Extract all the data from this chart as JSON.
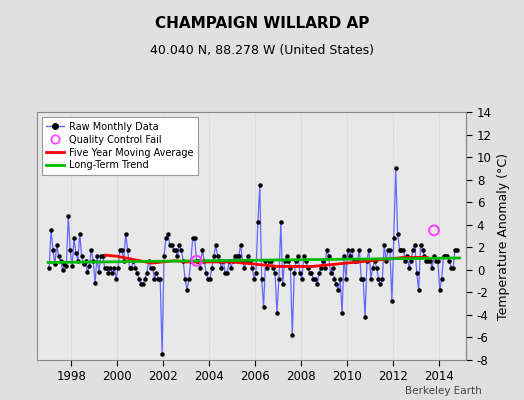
{
  "title": "CHAMPAIGN WILLARD AP",
  "subtitle": "40.040 N, 88.278 W (United States)",
  "ylabel": "Temperature Anomaly (°C)",
  "credit": "Berkeley Earth",
  "ylim": [
    -8,
    14
  ],
  "yticks": [
    -8,
    -6,
    -4,
    -2,
    0,
    2,
    4,
    6,
    8,
    10,
    12,
    14
  ],
  "xlim": [
    1996.5,
    2015.2
  ],
  "xticks": [
    1998,
    2000,
    2002,
    2004,
    2006,
    2008,
    2010,
    2012,
    2014
  ],
  "bg_color": "#e0e0e0",
  "plot_bg_color": "#e8e8e8",
  "grid_color": "#c8c8d8",
  "raw_line_color": "#6666ff",
  "raw_marker_color": "#000000",
  "moving_avg_color": "#ff0000",
  "trend_color": "#00bb00",
  "qc_fail_color": "#ff44ff",
  "raw_data": {
    "times": [
      1997.042,
      1997.125,
      1997.208,
      1997.292,
      1997.375,
      1997.458,
      1997.542,
      1997.625,
      1997.708,
      1997.792,
      1997.875,
      1997.958,
      1998.042,
      1998.125,
      1998.208,
      1998.292,
      1998.375,
      1998.458,
      1998.542,
      1998.625,
      1998.708,
      1998.792,
      1998.875,
      1998.958,
      1999.042,
      1999.125,
      1999.208,
      1999.292,
      1999.375,
      1999.458,
      1999.542,
      1999.625,
      1999.708,
      1999.792,
      1999.875,
      1999.958,
      2000.042,
      2000.125,
      2000.208,
      2000.292,
      2000.375,
      2000.458,
      2000.542,
      2000.625,
      2000.708,
      2000.792,
      2000.875,
      2000.958,
      2001.042,
      2001.125,
      2001.208,
      2001.292,
      2001.375,
      2001.458,
      2001.542,
      2001.625,
      2001.708,
      2001.792,
      2001.875,
      2001.958,
      2002.042,
      2002.125,
      2002.208,
      2002.292,
      2002.375,
      2002.458,
      2002.542,
      2002.625,
      2002.708,
      2002.792,
      2002.875,
      2002.958,
      2003.042,
      2003.125,
      2003.208,
      2003.292,
      2003.375,
      2003.458,
      2003.542,
      2003.625,
      2003.708,
      2003.792,
      2003.875,
      2003.958,
      2004.042,
      2004.125,
      2004.208,
      2004.292,
      2004.375,
      2004.458,
      2004.542,
      2004.625,
      2004.708,
      2004.792,
      2004.875,
      2004.958,
      2005.042,
      2005.125,
      2005.208,
      2005.292,
      2005.375,
      2005.458,
      2005.542,
      2005.625,
      2005.708,
      2005.792,
      2005.875,
      2005.958,
      2006.042,
      2006.125,
      2006.208,
      2006.292,
      2006.375,
      2006.458,
      2006.542,
      2006.625,
      2006.708,
      2006.792,
      2006.875,
      2006.958,
      2007.042,
      2007.125,
      2007.208,
      2007.292,
      2007.375,
      2007.458,
      2007.542,
      2007.625,
      2007.708,
      2007.792,
      2007.875,
      2007.958,
      2008.042,
      2008.125,
      2008.208,
      2008.292,
      2008.375,
      2008.458,
      2008.542,
      2008.625,
      2008.708,
      2008.792,
      2008.875,
      2008.958,
      2009.042,
      2009.125,
      2009.208,
      2009.292,
      2009.375,
      2009.458,
      2009.542,
      2009.625,
      2009.708,
      2009.792,
      2009.875,
      2009.958,
      2010.042,
      2010.125,
      2010.208,
      2010.292,
      2010.375,
      2010.458,
      2010.542,
      2010.625,
      2010.708,
      2010.792,
      2010.875,
      2010.958,
      2011.042,
      2011.125,
      2011.208,
      2011.292,
      2011.375,
      2011.458,
      2011.542,
      2011.625,
      2011.708,
      2011.792,
      2011.875,
      2011.958,
      2012.042,
      2012.125,
      2012.208,
      2012.292,
      2012.375,
      2012.458,
      2012.542,
      2012.625,
      2012.708,
      2012.792,
      2012.875,
      2012.958,
      2013.042,
      2013.125,
      2013.208,
      2013.292,
      2013.375,
      2013.458,
      2013.542,
      2013.625,
      2013.708,
      2013.792,
      2013.875,
      2013.958,
      2014.042,
      2014.125,
      2014.208,
      2014.292,
      2014.375,
      2014.458,
      2014.542,
      2014.625,
      2014.708,
      2014.792
    ],
    "values": [
      0.2,
      3.5,
      1.8,
      0.5,
      2.2,
      1.2,
      0.8,
      0.0,
      0.5,
      0.3,
      4.8,
      1.8,
      0.3,
      2.8,
      1.5,
      0.8,
      3.2,
      1.2,
      0.5,
      0.8,
      -0.2,
      0.3,
      1.8,
      0.8,
      -1.2,
      1.2,
      -0.2,
      1.2,
      1.2,
      0.2,
      0.2,
      -0.3,
      0.2,
      -0.3,
      0.2,
      -0.8,
      0.2,
      1.8,
      1.8,
      0.8,
      3.2,
      1.8,
      0.2,
      0.2,
      0.8,
      0.2,
      -0.3,
      -0.8,
      -1.3,
      -1.3,
      -0.8,
      -0.3,
      0.8,
      0.2,
      0.2,
      -0.8,
      -0.3,
      -0.8,
      -0.8,
      -7.5,
      1.2,
      2.8,
      3.2,
      2.2,
      2.2,
      1.8,
      1.8,
      1.2,
      2.2,
      1.8,
      0.8,
      -0.8,
      -1.8,
      -0.8,
      0.8,
      2.8,
      2.8,
      0.8,
      0.8,
      0.2,
      1.8,
      0.8,
      -0.3,
      -0.8,
      -0.8,
      0.2,
      1.2,
      2.2,
      1.2,
      0.8,
      0.2,
      0.8,
      -0.3,
      -0.3,
      0.8,
      0.2,
      0.8,
      1.2,
      1.2,
      1.2,
      2.2,
      0.8,
      0.2,
      0.8,
      1.2,
      0.8,
      0.2,
      -0.8,
      -0.3,
      4.2,
      7.5,
      -0.8,
      -3.3,
      0.8,
      0.2,
      0.8,
      0.8,
      0.2,
      -0.3,
      -3.8,
      -0.8,
      4.2,
      -1.3,
      0.8,
      1.2,
      0.8,
      0.2,
      -5.8,
      -0.3,
      0.8,
      1.2,
      -0.3,
      -0.8,
      1.2,
      0.8,
      0.2,
      -0.3,
      -0.3,
      -0.8,
      -0.8,
      -1.3,
      -0.3,
      0.2,
      0.8,
      0.2,
      1.8,
      1.2,
      -0.3,
      0.2,
      -0.8,
      -1.3,
      -1.8,
      -0.8,
      -3.8,
      1.2,
      -0.8,
      1.8,
      1.2,
      1.8,
      0.8,
      0.8,
      0.8,
      1.8,
      -0.8,
      -0.8,
      -4.2,
      0.8,
      1.8,
      -0.8,
      0.2,
      0.8,
      0.2,
      -0.8,
      -1.3,
      -0.8,
      2.2,
      0.8,
      1.8,
      1.8,
      -2.8,
      2.8,
      9.0,
      3.2,
      1.8,
      1.8,
      1.8,
      0.8,
      1.2,
      0.2,
      0.8,
      1.8,
      2.2,
      -0.3,
      -1.8,
      2.2,
      1.8,
      1.2,
      0.8,
      0.8,
      0.8,
      0.2,
      1.2,
      0.8,
      0.8,
      -1.8,
      -0.8,
      1.2,
      1.2,
      1.2,
      0.8,
      0.2,
      0.2,
      1.8,
      1.8
    ]
  },
  "moving_avg": {
    "times": [
      1999.5,
      2000.0,
      2000.5,
      2001.0,
      2001.5,
      2002.0,
      2002.5,
      2003.0,
      2003.5,
      2004.0,
      2004.5,
      2005.0,
      2005.5,
      2006.0,
      2006.5,
      2007.0,
      2007.5,
      2008.0,
      2008.5,
      2009.0,
      2009.5,
      2010.0,
      2010.5,
      2011.0,
      2011.5,
      2012.0,
      2012.5,
      2013.0,
      2013.5
    ],
    "values": [
      1.3,
      1.2,
      1.0,
      0.8,
      0.6,
      0.7,
      0.8,
      0.7,
      0.7,
      0.7,
      0.7,
      0.7,
      0.6,
      0.5,
      0.4,
      0.3,
      0.3,
      0.3,
      0.3,
      0.4,
      0.5,
      0.6,
      0.7,
      0.8,
      0.9,
      1.0,
      1.1,
      1.1,
      1.1
    ]
  },
  "trend": {
    "times": [
      1997.0,
      2014.9
    ],
    "values": [
      0.65,
      1.05
    ]
  },
  "qc_fail_points": [
    {
      "time": 2003.458,
      "value": 0.8
    },
    {
      "time": 2013.792,
      "value": 3.5
    }
  ]
}
